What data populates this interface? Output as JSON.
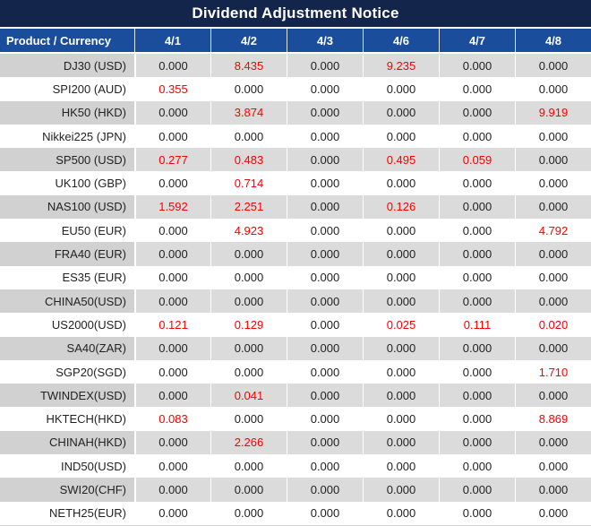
{
  "title": "Dividend Adjustment Notice",
  "table": {
    "product_header": "Product / Currency",
    "date_headers": [
      "4/1",
      "4/2",
      "4/3",
      "4/6",
      "4/7",
      "4/8"
    ],
    "zero_value": "0.000",
    "rows": [
      {
        "product": "DJ30 (USD)",
        "values": [
          "0.000",
          "8.435",
          "0.000",
          "9.235",
          "0.000",
          "0.000"
        ]
      },
      {
        "product": "SPI200 (AUD)",
        "values": [
          "0.355",
          "0.000",
          "0.000",
          "0.000",
          "0.000",
          "0.000"
        ]
      },
      {
        "product": "HK50 (HKD)",
        "values": [
          "0.000",
          "3.874",
          "0.000",
          "0.000",
          "0.000",
          "9.919"
        ]
      },
      {
        "product": "Nikkei225 (JPN)",
        "values": [
          "0.000",
          "0.000",
          "0.000",
          "0.000",
          "0.000",
          "0.000"
        ]
      },
      {
        "product": "SP500 (USD)",
        "values": [
          "0.277",
          "0.483",
          "0.000",
          "0.495",
          "0.059",
          "0.000"
        ]
      },
      {
        "product": "UK100 (GBP)",
        "values": [
          "0.000",
          "0.714",
          "0.000",
          "0.000",
          "0.000",
          "0.000"
        ]
      },
      {
        "product": "NAS100 (USD)",
        "values": [
          "1.592",
          "2.251",
          "0.000",
          "0.126",
          "0.000",
          "0.000"
        ]
      },
      {
        "product": "EU50 (EUR)",
        "values": [
          "0.000",
          "4.923",
          "0.000",
          "0.000",
          "0.000",
          "4.792"
        ]
      },
      {
        "product": "FRA40 (EUR)",
        "values": [
          "0.000",
          "0.000",
          "0.000",
          "0.000",
          "0.000",
          "0.000"
        ]
      },
      {
        "product": "ES35 (EUR)",
        "values": [
          "0.000",
          "0.000",
          "0.000",
          "0.000",
          "0.000",
          "0.000"
        ]
      },
      {
        "product": "CHINA50(USD)",
        "values": [
          "0.000",
          "0.000",
          "0.000",
          "0.000",
          "0.000",
          "0.000"
        ]
      },
      {
        "product": "US2000(USD)",
        "values": [
          "0.121",
          "0.129",
          "0.000",
          "0.025",
          "0.111",
          "0.020"
        ]
      },
      {
        "product": "SA40(ZAR)",
        "values": [
          "0.000",
          "0.000",
          "0.000",
          "0.000",
          "0.000",
          "0.000"
        ]
      },
      {
        "product": "SGP20(SGD)",
        "values": [
          "0.000",
          "0.000",
          "0.000",
          "0.000",
          "0.000",
          "1.710"
        ]
      },
      {
        "product": "TWINDEX(USD)",
        "values": [
          "0.000",
          "0.041",
          "0.000",
          "0.000",
          "0.000",
          "0.000"
        ]
      },
      {
        "product": "HKTECH(HKD)",
        "values": [
          "0.083",
          "0.000",
          "0.000",
          "0.000",
          "0.000",
          "8.869"
        ]
      },
      {
        "product": "CHINAH(HKD)",
        "values": [
          "0.000",
          "2.266",
          "0.000",
          "0.000",
          "0.000",
          "0.000"
        ]
      },
      {
        "product": "IND50(USD)",
        "values": [
          "0.000",
          "0.000",
          "0.000",
          "0.000",
          "0.000",
          "0.000"
        ]
      },
      {
        "product": "SWI20(CHF)",
        "values": [
          "0.000",
          "0.000",
          "0.000",
          "0.000",
          "0.000",
          "0.000"
        ]
      },
      {
        "product": "NETH25(EUR)",
        "values": [
          "0.000",
          "0.000",
          "0.000",
          "0.000",
          "0.000",
          "0.000"
        ]
      }
    ]
  },
  "colors": {
    "title_bg": "#13254a",
    "header_bg": "#1a4e9d",
    "row_alt_bg": "#dbdbdb",
    "row_alt_product_bg": "#d1d1d1",
    "zero_text": "#222222",
    "nonzero_text": "#fa0000"
  }
}
